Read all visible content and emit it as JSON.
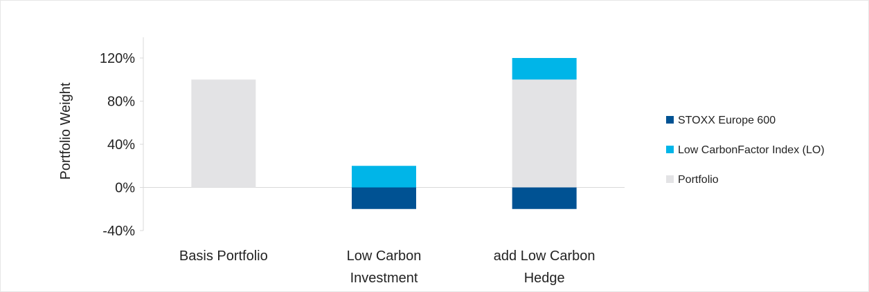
{
  "chart_data": {
    "type": "bar",
    "stacked": true,
    "categories": [
      [
        "Basis Portfolio"
      ],
      [
        "Low Carbon",
        "Investment"
      ],
      [
        "add Low Carbon",
        "Hedge"
      ]
    ],
    "series": [
      {
        "name": "STOXX Europe 600",
        "color": "#005293",
        "values": [
          0,
          -20,
          -20
        ]
      },
      {
        "name": "Low CarbonFactor Index (LO)",
        "color": "#00b5e8",
        "values": [
          0,
          20,
          20
        ]
      },
      {
        "name": "Portfolio",
        "color": "#e3e3e5",
        "values": [
          100,
          0,
          100
        ]
      }
    ],
    "stack_order": [
      "Portfolio",
      "Low CarbonFactor Index (LO)"
    ],
    "ylabel": "Portfolio Weight",
    "xlabel": "",
    "ylim": [
      -40,
      120
    ],
    "yticks": [
      -40,
      0,
      40,
      80,
      120
    ],
    "ytick_labels": [
      "-40%",
      "0%",
      "40%",
      "80%",
      "120%"
    ],
    "legend_position": "right",
    "grid": false
  }
}
